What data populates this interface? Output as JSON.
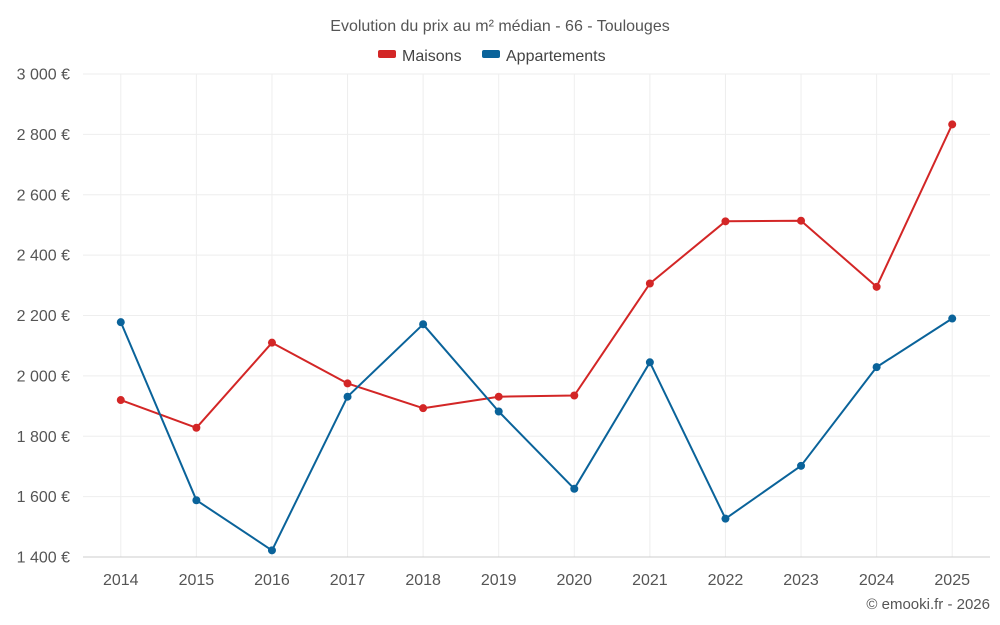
{
  "colors": {
    "maisons": "#d32626",
    "appartements": "#0a639a",
    "grid": "#eeeeee",
    "axis": "#cccccc",
    "text": "#555555"
  },
  "credit": "© emooki.fr - 2026",
  "chart_data": {
    "type": "line",
    "title": "Evolution du prix au m² médian - 66 - Toulouges",
    "xlabel": "",
    "ylabel": "",
    "categories": [
      "2014",
      "2015",
      "2016",
      "2017",
      "2018",
      "2019",
      "2020",
      "2021",
      "2022",
      "2023",
      "2024",
      "2025"
    ],
    "ylim": [
      1400,
      3000
    ],
    "yticks": [
      1400,
      1600,
      1800,
      2000,
      2200,
      2400,
      2600,
      2800,
      3000
    ],
    "ytick_labels": [
      "1 400 €",
      "1 600 €",
      "1 800 €",
      "2 000 €",
      "2 200 €",
      "2 400 €",
      "2 600 €",
      "2 800 €",
      "3 000 €"
    ],
    "legend_position": "top-center",
    "grid": true,
    "series": [
      {
        "name": "Maisons",
        "color": "#d32626",
        "values": [
          1920,
          1828,
          2110,
          1975,
          1893,
          1931,
          1935,
          2306,
          2512,
          2514,
          2295,
          2833
        ]
      },
      {
        "name": "Appartements",
        "color": "#0a639a",
        "values": [
          2178,
          1588,
          1422,
          1931,
          2171,
          1882,
          1626,
          2045,
          1527,
          1702,
          2029,
          2190
        ]
      }
    ]
  }
}
